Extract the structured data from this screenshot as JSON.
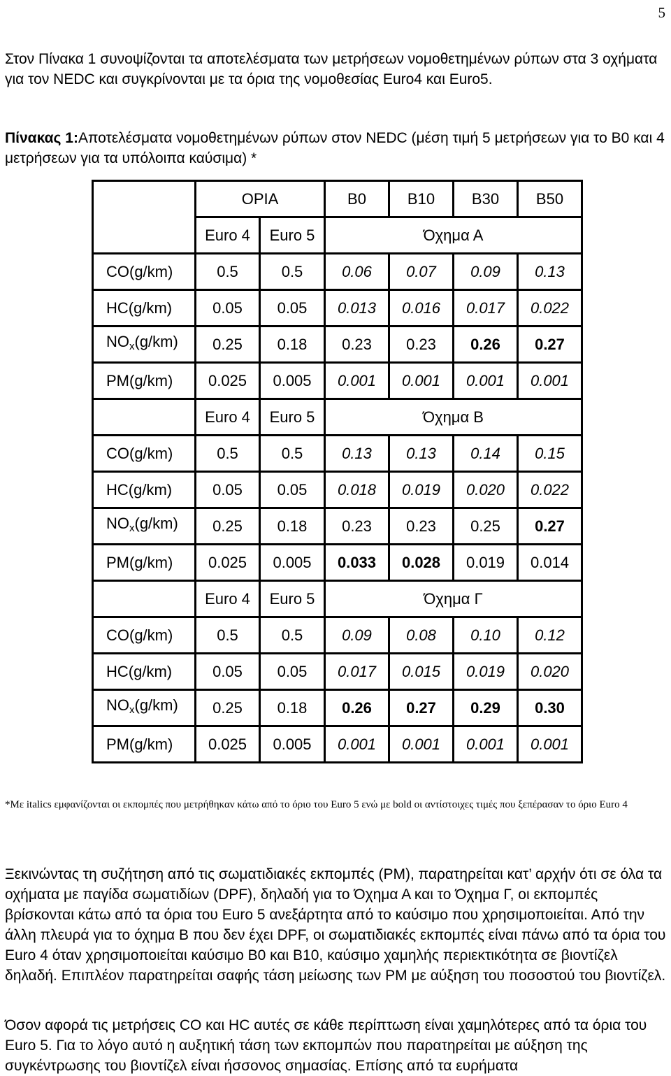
{
  "page_number": "5",
  "intro": "Στον Πίνακα 1 συνοψίζονται τα αποτελέσματα των μετρήσεων νομοθετημένων ρύπων στα 3 οχήματα για τον NEDC και συγκρίνονται με τα όρια της νομοθεσίας Euro4 και Euro5.",
  "caption": {
    "label": "Πίνακας 1:",
    "text": "Αποτελέσματα νομοθετημένων ρύπων στον NEDC (μέση τιμή 5 μετρήσεων για το B0 και 4 μετρήσεων για τα υπόλοιπα καύσιμα) *"
  },
  "table": {
    "header": {
      "limits": "ΟΡΙΑ",
      "fuels": [
        "B0",
        "B10",
        "B30",
        "B50"
      ]
    },
    "sub_header_limits": [
      "Euro 4",
      "Euro 5"
    ],
    "groups": [
      {
        "vehicle": "Όχημα Α",
        "rows": [
          {
            "pollutant": "CO(g/km)",
            "values": [
              "0.5",
              "0.5",
              "0.06",
              "0.07",
              "0.09",
              "0.13"
            ],
            "styles": [
              "",
              "",
              "it",
              "it",
              "it",
              "it"
            ]
          },
          {
            "pollutant": "HC(g/km)",
            "values": [
              "0.05",
              "0.05",
              "0.013",
              "0.016",
              "0.017",
              "0.022"
            ],
            "styles": [
              "",
              "",
              "it",
              "it",
              "it",
              "it"
            ]
          },
          {
            "pollutant": "NOx(g/km)",
            "values": [
              "0.25",
              "0.18",
              "0.23",
              "0.23",
              "0.26",
              "0.27"
            ],
            "styles": [
              "",
              "",
              "",
              "",
              "bd",
              "bd"
            ]
          },
          {
            "pollutant": "PM(g/km)",
            "values": [
              "0.025",
              "0.005",
              "0.001",
              "0.001",
              "0.001",
              "0.001"
            ],
            "styles": [
              "",
              "",
              "it",
              "it",
              "it",
              "it"
            ]
          }
        ]
      },
      {
        "vehicle": "Όχημα Β",
        "rows": [
          {
            "pollutant": "CO(g/km)",
            "values": [
              "0.5",
              "0.5",
              "0.13",
              "0.13",
              "0.14",
              "0.15"
            ],
            "styles": [
              "",
              "",
              "it",
              "it",
              "it",
              "it"
            ]
          },
          {
            "pollutant": "HC(g/km)",
            "values": [
              "0.05",
              "0.05",
              "0.018",
              "0.019",
              "0.020",
              "0.022"
            ],
            "styles": [
              "",
              "",
              "it",
              "it",
              "it",
              "it"
            ]
          },
          {
            "pollutant": "NOx(g/km)",
            "values": [
              "0.25",
              "0.18",
              "0.23",
              "0.23",
              "0.25",
              "0.27"
            ],
            "styles": [
              "",
              "",
              "",
              "",
              "",
              "bd"
            ]
          },
          {
            "pollutant": "PM(g/km)",
            "values": [
              "0.025",
              "0.005",
              "0.033",
              "0.028",
              "0.019",
              "0.014"
            ],
            "styles": [
              "",
              "",
              "bd",
              "bd",
              "",
              ""
            ]
          }
        ]
      },
      {
        "vehicle": "Όχημα Γ",
        "rows": [
          {
            "pollutant": "CO(g/km)",
            "values": [
              "0.5",
              "0.5",
              "0.09",
              "0.08",
              "0.10",
              "0.12"
            ],
            "styles": [
              "",
              "",
              "it",
              "it",
              "it",
              "it"
            ]
          },
          {
            "pollutant": "HC(g/km)",
            "values": [
              "0.05",
              "0.05",
              "0.017",
              "0.015",
              "0.019",
              "0.020"
            ],
            "styles": [
              "",
              "",
              "it",
              "it",
              "it",
              "it"
            ]
          },
          {
            "pollutant": "NOx(g/km)",
            "values": [
              "0.25",
              "0.18",
              "0.26",
              "0.27",
              "0.29",
              "0.30"
            ],
            "styles": [
              "",
              "",
              "bd",
              "bd",
              "bd",
              "bd"
            ]
          },
          {
            "pollutant": "PM(g/km)",
            "values": [
              "0.025",
              "0.005",
              "0.001",
              "0.001",
              "0.001",
              "0.001"
            ],
            "styles": [
              "",
              "",
              "it",
              "it",
              "it",
              "it"
            ]
          }
        ]
      }
    ]
  },
  "note": "*Με italics εμφανίζονται οι εκπομπές που μετρήθηκαν κάτω από το όριο του Euro 5 ενώ με bold οι αντίστοιχες τιμές που ξεπέρασαν το όριο Euro 4",
  "paragraph1": "Ξεκινώντας τη συζήτηση από τις σωματιδιακές εκπομπές (PM), παρατηρείται κατ’ αρχήν ότι σε όλα τα οχήματα με παγίδα σωματιδίων (DPF), δηλαδή για το Όχημα Α και το Όχημα Γ, οι εκπομπές βρίσκονται κάτω από τα όρια του Euro 5 ανεξάρτητα από το καύσιμο που χρησιμοποιείται. Από την άλλη πλευρά για το όχημα Β που δεν έχει DPF, οι σωματιδιακές εκπομπές είναι πάνω από τα όρια του Euro 4 όταν χρησιμοποιείται καύσιμο B0 και B10, καύσιμο χαμηλής περιεκτικότητα σε βιοντίζελ δηλαδή. Επιπλέον παρατηρείται σαφής τάση μείωσης των PM με αύξηση του ποσοστού του βιοντίζελ.",
  "paragraph2": "Όσον αφορά τις μετρήσεις CO και HC αυτές σε κάθε περίπτωση είναι χαμηλότερες από τα όρια του Euro 5. Για το λόγο αυτό η αυξητική τάση των εκπομπών που παρατηρείται με αύξηση της συγκέντρωσης του βιοντίζελ είναι ήσσονος σημασίας. Επίσης από τα ευρήματα"
}
